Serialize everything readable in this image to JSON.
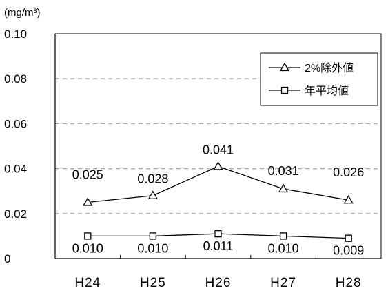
{
  "chart_data": {
    "type": "line",
    "categories": [
      "H24",
      "H25",
      "H26",
      "H27",
      "H28"
    ],
    "unit_label": "(mg/m³)",
    "yticks": [
      "0.10",
      "0.08",
      "0.06",
      "0.04",
      "0.02",
      "0"
    ],
    "ylim": [
      0,
      0.1
    ],
    "grid": true,
    "legend_position": "top-right",
    "series": [
      {
        "name": "2%除外値",
        "marker": "triangle",
        "values": [
          0.025,
          0.028,
          0.041,
          0.031,
          0.026
        ],
        "labels": [
          "0.025",
          "0.028",
          "0.041",
          "0.031",
          "0.026"
        ]
      },
      {
        "name": "年平均値",
        "marker": "square",
        "values": [
          0.01,
          0.01,
          0.011,
          0.01,
          0.009
        ],
        "labels": [
          "0.010",
          "0.010",
          "0.011",
          "0.010",
          "0.009"
        ]
      }
    ],
    "colors": {
      "line": "#000000",
      "grid": "#a6a6a6",
      "background": "#ffffff"
    }
  }
}
